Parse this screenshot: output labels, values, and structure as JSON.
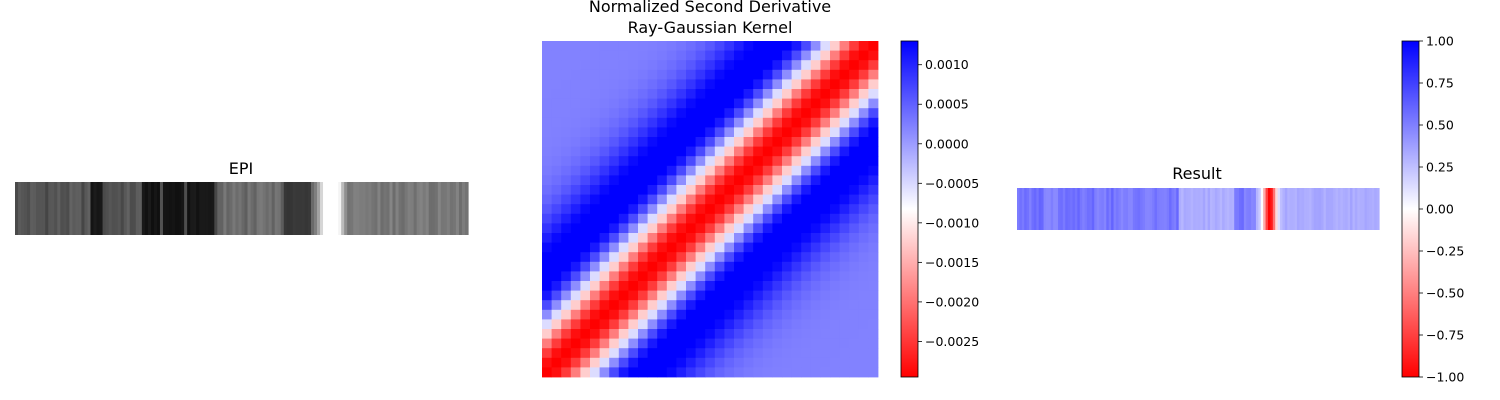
{
  "figure": {
    "panels": [
      {
        "title": "EPI"
      },
      {
        "title_lines": [
          "Normalized Second Derivative",
          "Ray-Gaussian Kernel"
        ]
      },
      {
        "title": "Result"
      }
    ]
  },
  "chart_data": [
    {
      "type": "heatmap",
      "title": "EPI",
      "colormap": "gray",
      "rows": 17,
      "cols": 150,
      "description_of_columns": "vertical grayscale streaks; dark bands near left-center, bright white region near x~0.7",
      "axes_visible": false,
      "colorbar": false
    },
    {
      "type": "heatmap",
      "title": "Normalized Second Derivative\nRay-Gaussian Kernel",
      "colormap": "bwr_r",
      "rows": 35,
      "cols": 35,
      "pattern": "diagonal second-derivative Gaussian: red center band, blue side bands, light-blue background",
      "colorbar": {
        "vmin": -0.00295,
        "vmax": 0.0013,
        "ticks": [
          0.001,
          0.0005,
          0.0,
          -0.0005,
          -0.001,
          -0.0015,
          -0.002,
          -0.0025
        ],
        "tick_labels": [
          "0.0010",
          "0.0005",
          "0.0000",
          "−0.0005",
          "−0.0010",
          "−0.0015",
          "−0.0020",
          "−0.0025"
        ]
      },
      "axes_visible": false
    },
    {
      "type": "heatmap",
      "title": "Result",
      "colormap": "bwr_r",
      "rows": 14,
      "cols": 150,
      "pattern": "mostly mid-blue streaks; strong red band near x~0.69",
      "colorbar": {
        "vmin": -1.0,
        "vmax": 1.0,
        "ticks": [
          1.0,
          0.75,
          0.5,
          0.25,
          0.0,
          -0.25,
          -0.5,
          -0.75,
          -1.0
        ],
        "tick_labels": [
          "1.00",
          "0.75",
          "0.50",
          "0.25",
          "0.00",
          "−0.25",
          "−0.50",
          "−0.75",
          "−1.00"
        ]
      },
      "axes_visible": false
    }
  ],
  "colors": {
    "blue": "#0000ff",
    "white": "#ffffff",
    "red": "#ff0000"
  }
}
